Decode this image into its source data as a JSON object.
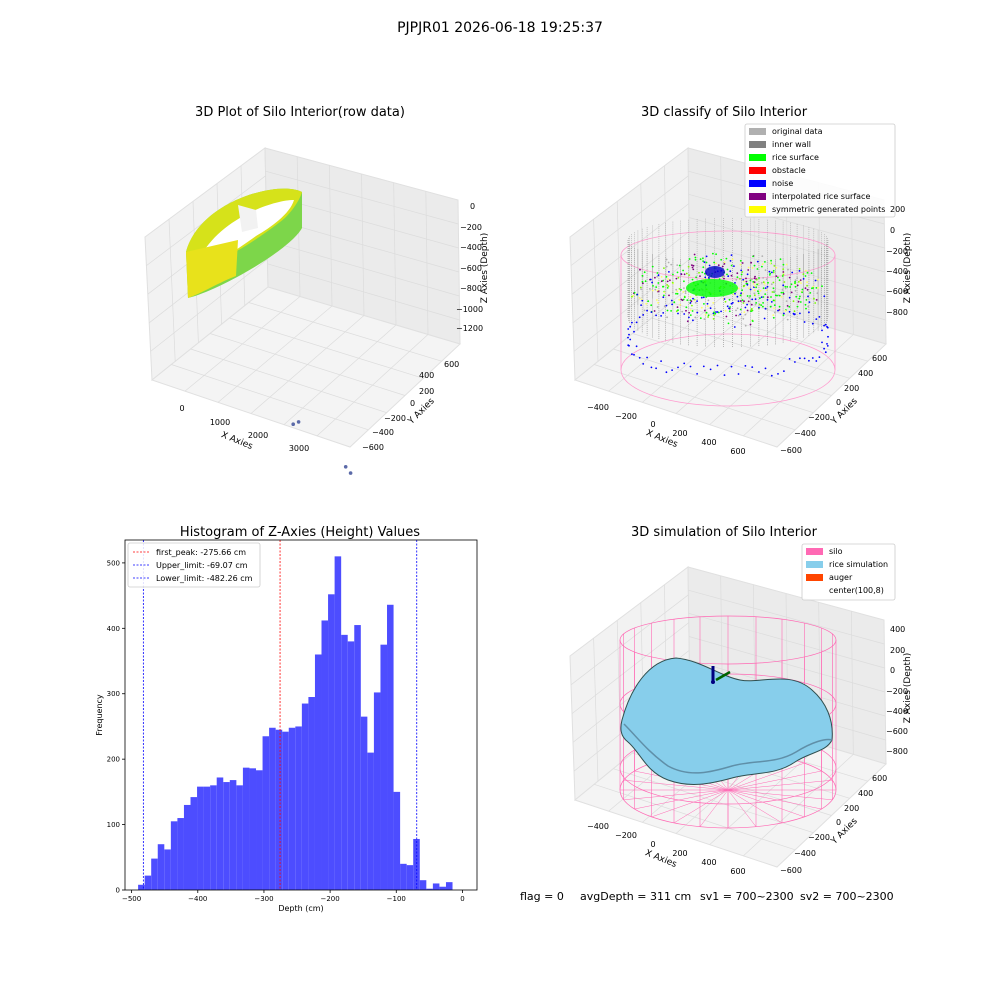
{
  "suptitle": "PJPJR01 2026-06-18 19:25:37",
  "chart_data": [
    {
      "type": "scatter",
      "projection": "3d",
      "title": "3D Plot of Silo Interior(row data)",
      "xlabel": "X Axies",
      "ylabel": "Y Axies",
      "zlabel": "Z Axies (Depth)",
      "x_ticks": [
        "0",
        "1000",
        "2000",
        "3000"
      ],
      "y_ticks": [
        "600",
        "400",
        "200",
        "0",
        "−200",
        "−400",
        "−600"
      ],
      "z_ticks": [
        "0",
        "−200",
        "−400",
        "−600",
        "−800",
        "−1000",
        "−1200"
      ],
      "colormap": "viridis",
      "points": [
        {
          "x": 2400,
          "y": -100,
          "z": -1250
        },
        {
          "x": 2700,
          "y": 0,
          "z": -1250
        },
        {
          "x": 3200,
          "y": -550,
          "z": -1300
        },
        {
          "x": 3150,
          "y": -500,
          "z": -1280
        }
      ]
    },
    {
      "type": "scatter",
      "projection": "3d",
      "title": "3D classify of Silo Interior",
      "xlabel": "X Axies",
      "ylabel": "Y Axies",
      "zlabel": "Z Axies (Depth)",
      "x_ticks": [
        "−400",
        "−200",
        "0",
        "200",
        "400",
        "600"
      ],
      "y_ticks": [
        "600",
        "400",
        "200",
        "0",
        "−200",
        "−400",
        "−600"
      ],
      "z_ticks": [
        "200",
        "0",
        "−200",
        "−400",
        "−600",
        "−800"
      ],
      "legend_position": "upper-right",
      "legend": [
        {
          "label": "original data",
          "color": "#b0b0b0"
        },
        {
          "label": "inner wall",
          "color": "#808080"
        },
        {
          "label": "rice surface",
          "color": "#00ff00"
        },
        {
          "label": "obstacle",
          "color": "#ff0000"
        },
        {
          "label": "noise",
          "color": "#0000ff"
        },
        {
          "label": "interpolated rice surface",
          "color": "#800080"
        },
        {
          "label": "symmetric generated points",
          "color": "#ffff00"
        }
      ]
    },
    {
      "type": "bar",
      "subtype": "histogram",
      "title": "Histogram of Z-Axies (Height) Values",
      "xlabel": "Depth (cm)",
      "ylabel": "Frequency",
      "xlim": [
        -510,
        22
      ],
      "ylim": [
        0,
        535
      ],
      "x_ticks": [
        -500,
        -400,
        -300,
        -200,
        -100,
        0
      ],
      "y_ticks": [
        0,
        100,
        200,
        300,
        400,
        500
      ],
      "bar_color": "#4d4dff",
      "bin_width": 9.9,
      "bin_starts": [
        -490.2,
        -480.3,
        -470.4,
        -460.5,
        -450.6,
        -440.7,
        -430.8,
        -420.9,
        -411.0,
        -401.1,
        -391.2,
        -381.3,
        -371.4,
        -361.5,
        -351.6,
        -341.7,
        -331.8,
        -321.9,
        -312.0,
        -302.1,
        -292.2,
        -282.3,
        -272.4,
        -262.5,
        -252.6,
        -242.7,
        -232.8,
        -222.9,
        -213.0,
        -203.1,
        -193.2,
        -183.3,
        -173.4,
        -163.5,
        -153.6,
        -143.7,
        -133.8,
        -123.9,
        -114.0,
        -104.1,
        -94.2,
        -84.3,
        -74.4,
        -64.5,
        -54.6,
        -44.7,
        -34.8,
        -24.9,
        -15.0,
        -5.1
      ],
      "values": [
        8,
        22,
        48,
        70,
        62,
        105,
        110,
        130,
        142,
        158,
        158,
        160,
        172,
        165,
        168,
        160,
        187,
        186,
        183,
        235,
        248,
        245,
        242,
        248,
        250,
        285,
        295,
        360,
        412,
        452,
        510,
        390,
        380,
        405,
        265,
        210,
        302,
        375,
        436,
        150,
        40,
        38,
        78,
        15,
        2,
        10,
        5,
        12,
        0,
        0
      ],
      "vlines": [
        {
          "label": "first_peak: -275.66 cm",
          "x": -275.66,
          "color": "#ff0000"
        },
        {
          "label": "Upper_limit: -69.07 cm",
          "x": -69.07,
          "color": "#0000ff"
        },
        {
          "label": "Lower_limit: -482.26 cm",
          "x": -482.26,
          "color": "#0000ff"
        }
      ]
    },
    {
      "type": "area",
      "projection": "3d",
      "title": "3D simulation of Silo Interior",
      "xlabel": "X Axies",
      "ylabel": "Y Axies",
      "zlabel": "Z Axies (Depth)",
      "x_ticks": [
        "−400",
        "−200",
        "0",
        "200",
        "400",
        "600"
      ],
      "y_ticks": [
        "600",
        "400",
        "200",
        "0",
        "−200",
        "−400",
        "−600"
      ],
      "z_ticks": [
        "400",
        "200",
        "0",
        "−200",
        "−400",
        "−600",
        "−800"
      ],
      "legend_position": "upper-right",
      "legend": [
        {
          "label": "silo",
          "color": "#ff69b4"
        },
        {
          "label": "rice simulation",
          "color": "#87ceeb"
        },
        {
          "label": "auger",
          "color": "#ff4500"
        },
        {
          "label": "center(100,8)",
          "color": "#ffffff"
        }
      ]
    }
  ],
  "footer": {
    "flag": "flag = 0",
    "avg": "avgDepth = 311 cm",
    "sv1": "sv1 = 700~2300",
    "sv2": "sv2 = 700~2300"
  }
}
